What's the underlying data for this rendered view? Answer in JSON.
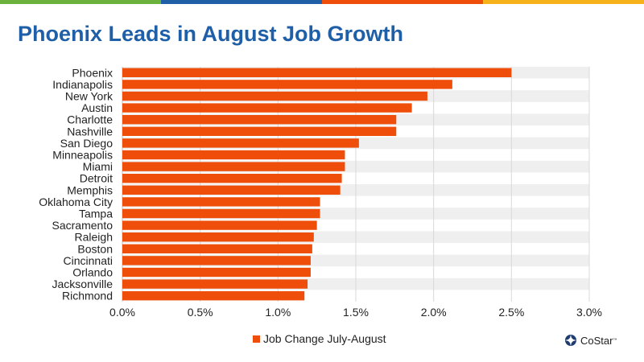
{
  "title": "Phoenix Leads in August Job Growth",
  "colors": {
    "bar": "#ee4d0a",
    "title": "#1f5fa8",
    "band": "#efefef",
    "stripe": [
      "#6ab23c",
      "#1f5fa8",
      "#ee4d0a",
      "#f6b21a"
    ]
  },
  "legend": {
    "label": "Job Change July-August"
  },
  "brand": {
    "name": "CoStar",
    "mark": "™",
    "icon": "costar-logo-icon"
  },
  "chart_data": {
    "type": "bar",
    "orientation": "horizontal",
    "categories": [
      "Phoenix",
      "Indianapolis",
      "New York",
      "Austin",
      "Charlotte",
      "Nashville",
      "San Diego",
      "Minneapolis",
      "Miami",
      "Detroit",
      "Memphis",
      "Oklahoma City",
      "Tampa",
      "Sacramento",
      "Raleigh",
      "Boston",
      "Cincinnati",
      "Orlando",
      "Jacksonville",
      "Richmond"
    ],
    "series": [
      {
        "name": "Job Change July-August",
        "values": [
          2.5,
          2.12,
          1.96,
          1.86,
          1.76,
          1.76,
          1.52,
          1.43,
          1.43,
          1.41,
          1.4,
          1.27,
          1.27,
          1.25,
          1.23,
          1.22,
          1.21,
          1.21,
          1.19,
          1.17
        ]
      }
    ],
    "xlim": [
      0,
      3.0
    ],
    "xticks": [
      "0.0%",
      "0.5%",
      "1.0%",
      "1.5%",
      "2.0%",
      "2.5%",
      "3.0%"
    ],
    "xlabel": "",
    "ylabel": "",
    "grid": "vertical",
    "legend_position": "bottom"
  }
}
